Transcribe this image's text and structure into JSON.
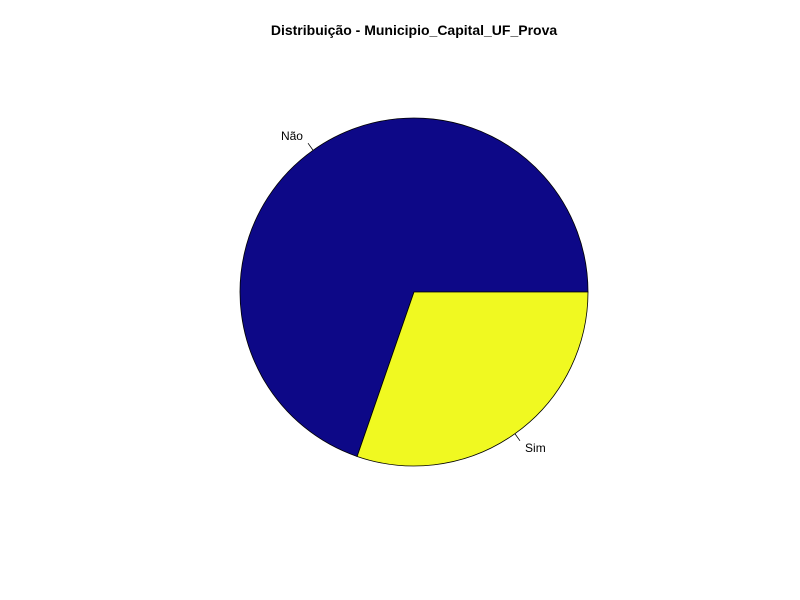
{
  "chart_data": {
    "type": "pie",
    "title": "Distribuição - Municipio_Capital_UF_Prova",
    "labels": [
      "Não",
      "Sim"
    ],
    "values": [
      0.697,
      0.303
    ],
    "colors": [
      "#0d0887",
      "#f0f921"
    ],
    "start_angle_deg": 0,
    "direction": "counterclockwise"
  }
}
